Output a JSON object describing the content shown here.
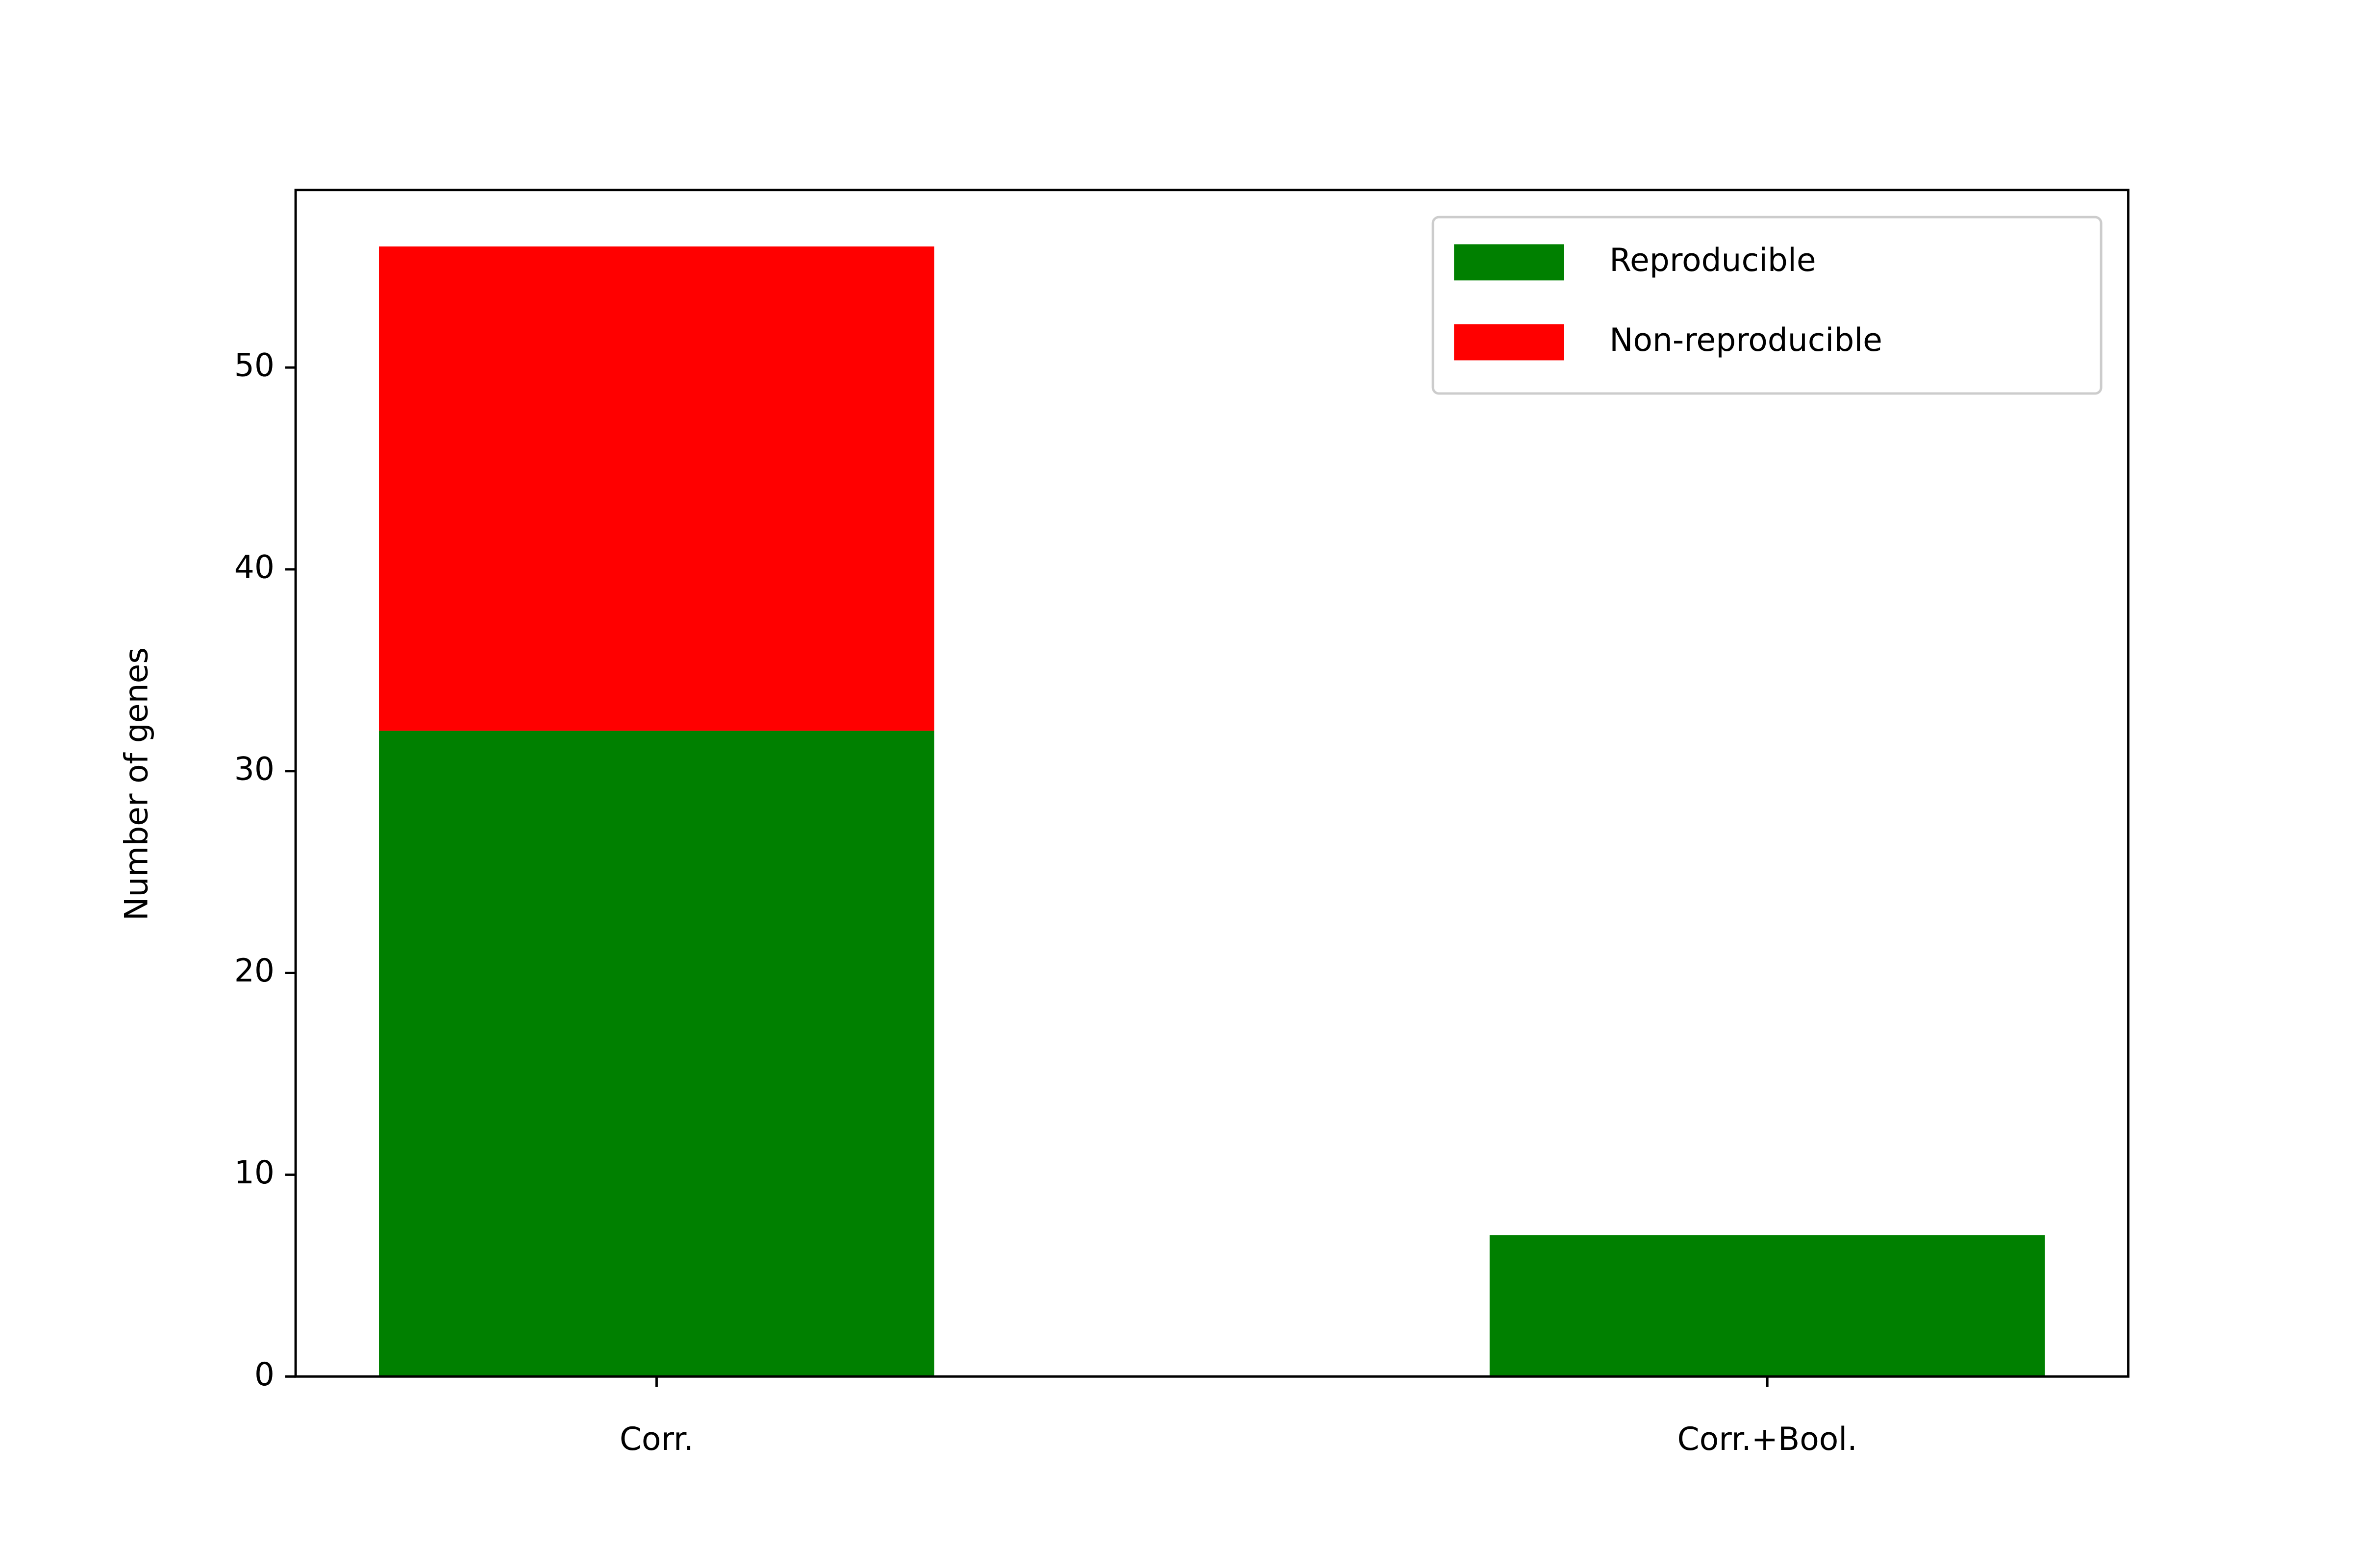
{
  "chart_data": {
    "type": "stacked_bar",
    "categories": [
      "Corr.",
      "Corr.+Bool."
    ],
    "series": [
      {
        "name": "Reproducible",
        "color": "#008000",
        "values": [
          32,
          7
        ]
      },
      {
        "name": "Non-reproducible",
        "color": "#ff0000",
        "values": [
          24,
          0
        ]
      }
    ],
    "y_label": "Number of genes",
    "ylim": [
      0,
      58.8
    ],
    "yticks": [
      0,
      10,
      20,
      30,
      40,
      50
    ],
    "legend": "upper right"
  }
}
